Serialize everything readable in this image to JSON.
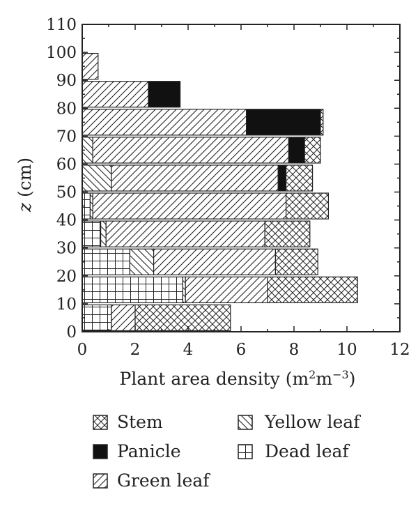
{
  "chart_data": {
    "type": "bar",
    "orientation": "horizontal",
    "stacked": true,
    "xlabel_main": "Plant area density (m",
    "xlabel_sup1": "2",
    "xlabel_mid": "m",
    "xlabel_sup2": "−3",
    "xlabel_end": ")",
    "ylabel_var": "z",
    "ylabel_unit": " (cm)",
    "xlim": [
      0,
      12
    ],
    "ylim": [
      0,
      110
    ],
    "xticks": [
      "0",
      "2",
      "4",
      "6",
      "8",
      "10",
      "12"
    ],
    "yticks": [
      "0",
      "10",
      "20",
      "30",
      "40",
      "50",
      "60",
      "70",
      "80",
      "90",
      "100",
      "110"
    ],
    "bin_height": 10,
    "legend_position": "bottom",
    "series": [
      {
        "name": "Stem",
        "pattern": "cross-hatch",
        "values": [
          3.6,
          3.4,
          1.6,
          1.7,
          1.6,
          1.0,
          0.6,
          0.1,
          0,
          0
        ]
      },
      {
        "name": "Panicle",
        "pattern": "solid-black",
        "values": [
          0,
          0,
          0,
          0,
          0,
          0.3,
          0.6,
          2.8,
          1.2,
          0
        ]
      },
      {
        "name": "Green leaf",
        "pattern": "diagonal-forward",
        "values": [
          0.9,
          3.1,
          4.6,
          6.0,
          7.3,
          6.3,
          7.4,
          6.2,
          2.5,
          0.6
        ]
      },
      {
        "name": "Yellow leaf",
        "pattern": "diagonal-backward",
        "values": [
          0,
          0.1,
          0.9,
          0.2,
          0.1,
          1.1,
          0.4,
          0,
          0,
          0
        ]
      },
      {
        "name": "Dead leaf",
        "pattern": "grid",
        "values": [
          1.1,
          3.8,
          1.8,
          0.7,
          0.3,
          0,
          0,
          0,
          0,
          0
        ]
      }
    ],
    "bins": [
      {
        "z_min": 0,
        "z_max": 10
      },
      {
        "z_min": 10,
        "z_max": 20
      },
      {
        "z_min": 20,
        "z_max": 30
      },
      {
        "z_min": 30,
        "z_max": 40
      },
      {
        "z_min": 40,
        "z_max": 50
      },
      {
        "z_min": 50,
        "z_max": 60
      },
      {
        "z_min": 60,
        "z_max": 70
      },
      {
        "z_min": 70,
        "z_max": 80
      },
      {
        "z_min": 80,
        "z_max": 90
      },
      {
        "z_min": 90,
        "z_max": 100
      }
    ],
    "stack_order": [
      "Dead leaf",
      "Yellow leaf",
      "Green leaf",
      "Panicle",
      "Stem"
    ]
  },
  "legend": {
    "items": [
      {
        "label": "Stem",
        "pattern": "cross-hatch"
      },
      {
        "label": "Yellow leaf",
        "pattern": "diagonal-backward"
      },
      {
        "label": "Panicle",
        "pattern": "solid-black"
      },
      {
        "label": "Dead leaf",
        "pattern": "grid"
      },
      {
        "label": "Green leaf",
        "pattern": "diagonal-forward"
      }
    ]
  },
  "colors": {
    "ink": "#222222",
    "background": "#ffffff"
  }
}
